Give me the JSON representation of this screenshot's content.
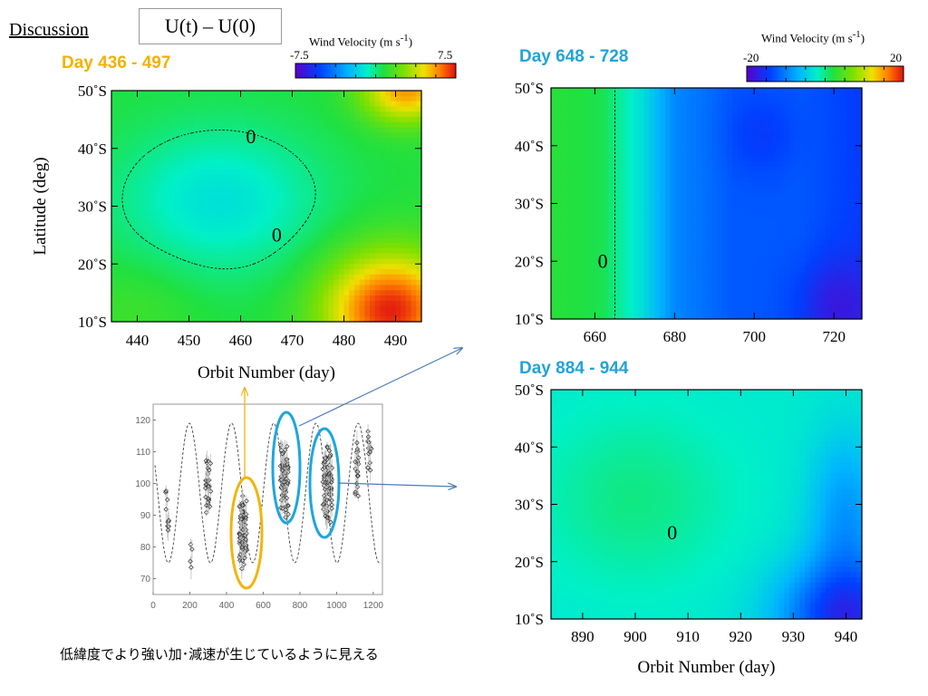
{
  "header": {
    "title": "Discussion",
    "formula": "U(t) – U(0)"
  },
  "note": "低緯度でより強い加･減速が生じているように見える",
  "colors": {
    "panel1_label": "#f3b100",
    "panel2_label": "#20a4d8",
    "panel3_label": "#20a4d8",
    "yellow_ellipse": "#f2b410",
    "blue_ellipse": "#1ea6dc",
    "arrow": "#4a7cb7"
  },
  "chart_data": [
    {
      "type": "heatmap",
      "panel_label": "Day 436 - 497",
      "xlabel": "Orbit Number (day)",
      "ylabel": "Latitude (deg)",
      "xlim": [
        435,
        495
      ],
      "ylim": [
        10,
        50
      ],
      "xticks": [
        440,
        450,
        460,
        470,
        480,
        490
      ],
      "yticks": [
        10,
        20,
        30,
        40,
        50
      ],
      "ytick_labels": [
        "10˚S",
        "20˚S",
        "30˚S",
        "40˚S",
        "50˚S"
      ],
      "colorbar": {
        "title": "Wind Velocity (m s-1)",
        "min": -7.5,
        "max": 7.5,
        "min_label": "-7.5",
        "max_label": "7.5"
      },
      "blobs": [
        {
          "x": 456,
          "y": 31,
          "value": -2.0,
          "sx": 14,
          "sy": 9
        },
        {
          "x": 489,
          "y": 12,
          "value": 6.5,
          "sx": 9,
          "sy": 7
        },
        {
          "x": 492,
          "y": 50,
          "value": 4.8,
          "sx": 6,
          "sy": 4
        },
        {
          "x": 440,
          "y": 12,
          "value": 0.6,
          "sx": 8,
          "sy": 6
        }
      ],
      "base_value": 0.8,
      "contour_labels": [
        {
          "text": "0",
          "x": 462,
          "y": 42
        },
        {
          "text": "0",
          "x": 467,
          "y": 25
        }
      ]
    },
    {
      "type": "heatmap",
      "panel_label": "Day 648 - 728",
      "xlabel": "",
      "ylabel": "",
      "xlim": [
        649,
        727
      ],
      "ylim": [
        10,
        50
      ],
      "xticks": [
        660,
        680,
        700,
        720
      ],
      "yticks": [
        10,
        20,
        30,
        40,
        50
      ],
      "ytick_labels": [
        "10˚S",
        "20˚S",
        "30˚S",
        "40˚S",
        "50˚S"
      ],
      "colorbar": {
        "title": "Wind Velocity (m s-1)",
        "min": -20,
        "max": 20,
        "min_label": "-20",
        "max_label": "20"
      },
      "gradient_x": [
        [
          649,
          2.5
        ],
        [
          662,
          1.5
        ],
        [
          672,
          -3.5
        ],
        [
          680,
          -9.5
        ],
        [
          695,
          -12.5
        ],
        [
          712,
          -12.5
        ],
        [
          727,
          -14.5
        ]
      ],
      "blobs": [
        {
          "x": 720,
          "y": 12,
          "value": -4.0,
          "sx": 7,
          "sy": 6
        },
        {
          "x": 702,
          "y": 42,
          "value": -2.0,
          "sx": 6,
          "sy": 5
        }
      ],
      "contour_labels": [
        {
          "text": "0",
          "x": 662,
          "y": 20
        }
      ]
    },
    {
      "type": "heatmap",
      "panel_label": "Day 884 - 944",
      "xlabel": "Orbit Number (day)",
      "ylabel": "",
      "xlim": [
        884,
        943
      ],
      "ylim": [
        10,
        50
      ],
      "xticks": [
        890,
        900,
        910,
        920,
        930,
        940
      ],
      "yticks": [
        10,
        20,
        30,
        40,
        50
      ],
      "ytick_labels": [
        "10˚S",
        "20˚S",
        "30˚S",
        "40˚S",
        "50˚S"
      ],
      "colorbar": {
        "title": "Wind Velocity (m s-1)",
        "min": -20,
        "max": 20,
        "min_label": "-20",
        "max_label": "20"
      },
      "blobs": [
        {
          "x": 900,
          "y": 31,
          "value": 2.5,
          "sx": 12,
          "sy": 10
        },
        {
          "x": 940,
          "y": 10,
          "value": -13.0,
          "sx": 9,
          "sy": 7
        },
        {
          "x": 940,
          "y": 28,
          "value": -6.0,
          "sx": 5,
          "sy": 10
        }
      ],
      "base_value": -2.5,
      "contour_labels": [
        {
          "text": "0",
          "x": 907,
          "y": 25
        }
      ]
    },
    {
      "type": "scatter",
      "xlim": [
        0,
        1250
      ],
      "ylim": [
        65,
        125
      ],
      "xticks": [
        0,
        200,
        400,
        600,
        800,
        1000,
        1200
      ],
      "yticks": [
        70,
        80,
        90,
        100,
        110,
        120
      ],
      "sine": {
        "mean": 97,
        "amp": 22,
        "period": 230,
        "phase_day": 140
      },
      "clusters": [
        {
          "x": 80,
          "y": 92,
          "n": 10,
          "dx": 15,
          "dy": 10
        },
        {
          "x": 210,
          "y": 78,
          "n": 4,
          "dx": 10,
          "dy": 6
        },
        {
          "x": 300,
          "y": 100,
          "n": 28,
          "dx": 15,
          "dy": 8
        },
        {
          "x": 490,
          "y": 85,
          "n": 70,
          "dx": 20,
          "dy": 10
        },
        {
          "x": 715,
          "y": 102,
          "n": 70,
          "dx": 22,
          "dy": 10
        },
        {
          "x": 950,
          "y": 100,
          "n": 70,
          "dx": 25,
          "dy": 10
        },
        {
          "x": 1110,
          "y": 105,
          "n": 18,
          "dx": 10,
          "dy": 9
        },
        {
          "x": 1180,
          "y": 112,
          "n": 12,
          "dx": 10,
          "dy": 7
        }
      ]
    }
  ]
}
